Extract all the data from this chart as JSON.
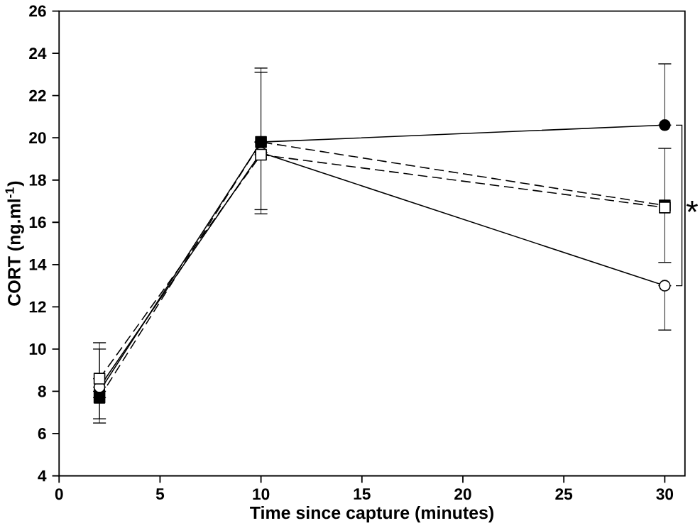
{
  "chart_data": {
    "type": "line",
    "xlabel": "Time since capture (minutes)",
    "ylabel": "CORT (ng.ml$^{-1}$)",
    "xlim": [
      0,
      31
    ],
    "ylim": [
      4,
      26
    ],
    "xticks": [
      0,
      5,
      10,
      15,
      20,
      25,
      30
    ],
    "yticks": [
      4,
      6,
      8,
      10,
      12,
      14,
      16,
      18,
      20,
      22,
      24,
      26
    ],
    "x": [
      2,
      10,
      30
    ],
    "series": [
      {
        "color": "#000000",
        "marker": "circle",
        "line_style": "solid",
        "values": [
          8.0,
          19.8,
          20.6
        ],
        "errors": [
          [
            6.7,
            8.0
          ],
          [
            19.8,
            23.3
          ],
          [
            20.6,
            23.5
          ]
        ]
      },
      {
        "color": "#ffffff",
        "marker": "circle",
        "line_style": "solid",
        "values": [
          8.2,
          19.3,
          13.0
        ],
        "errors": [
          [
            8.2,
            10.0
          ],
          [
            16.4,
            19.3
          ],
          [
            10.9,
            13.0
          ]
        ]
      },
      {
        "color": "#000000",
        "marker": "square",
        "line_style": "dashed",
        "values": [
          7.7,
          19.8,
          16.8
        ],
        "errors": [
          [
            6.5,
            7.7
          ],
          [
            16.6,
            19.8
          ],
          null
        ]
      },
      {
        "color": "#ffffff",
        "marker": "square",
        "line_style": "dashed",
        "values": [
          8.6,
          19.2,
          16.7
        ],
        "errors": [
          [
            8.6,
            10.3
          ],
          [
            19.2,
            23.1
          ],
          [
            14.1,
            19.5
          ]
        ]
      }
    ],
    "annotations": [
      {
        "text": "*",
        "x": 30,
        "y": 16.8
      }
    ]
  }
}
